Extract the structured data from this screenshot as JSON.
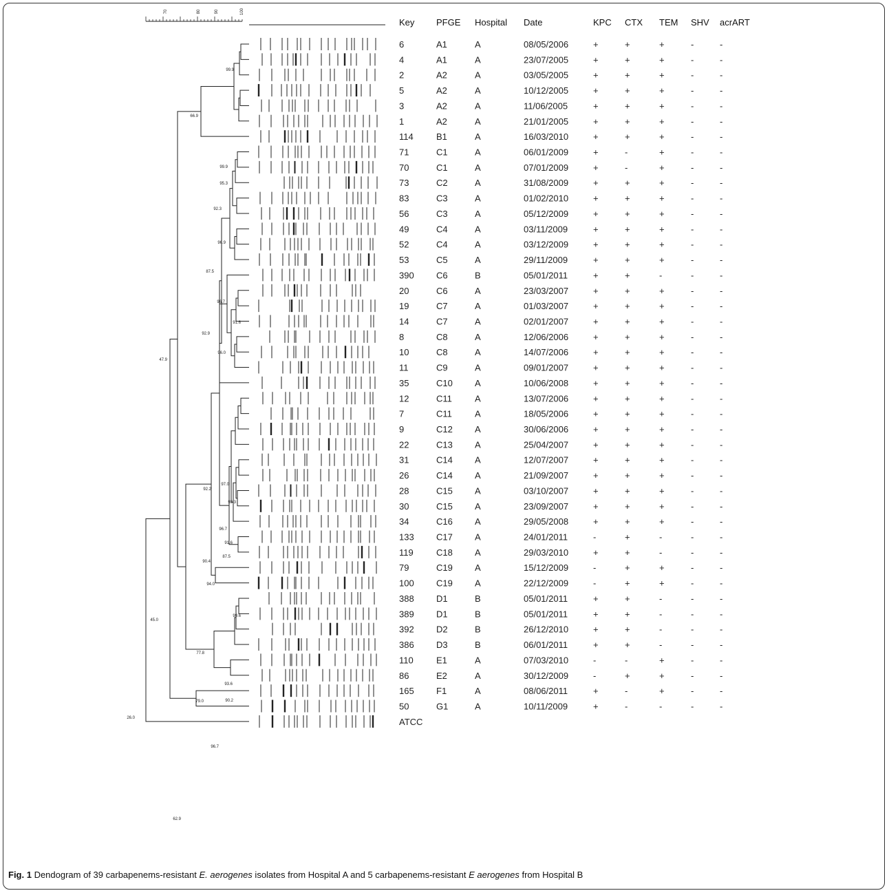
{
  "headers": [
    "Key",
    "PFGE",
    "Hospital",
    "Date",
    "KPC",
    "CTX",
    "TEM",
    "SHV",
    "acrART"
  ],
  "scale_ticks": [
    "70",
    "80",
    "90",
    "100"
  ],
  "rows": [
    {
      "key": "6",
      "pfge": "A1",
      "hospital": "A",
      "date": "08/05/2006",
      "kpc": "+",
      "ctx": "+",
      "tem": "+",
      "shv": "-",
      "acr": "-"
    },
    {
      "key": "4",
      "pfge": "A1",
      "hospital": "A",
      "date": "23/07/2005",
      "kpc": "+",
      "ctx": "+",
      "tem": "+",
      "shv": "-",
      "acr": "-"
    },
    {
      "key": "2",
      "pfge": "A2",
      "hospital": "A",
      "date": "03/05/2005",
      "kpc": "+",
      "ctx": "+",
      "tem": "+",
      "shv": "-",
      "acr": "-"
    },
    {
      "key": "5",
      "pfge": "A2",
      "hospital": "A",
      "date": "10/12/2005",
      "kpc": "+",
      "ctx": "+",
      "tem": "+",
      "shv": "-",
      "acr": "-"
    },
    {
      "key": "3",
      "pfge": "A2",
      "hospital": "A",
      "date": "11/06/2005",
      "kpc": "+",
      "ctx": "+",
      "tem": "+",
      "shv": "-",
      "acr": "-"
    },
    {
      "key": "1",
      "pfge": "A2",
      "hospital": "A",
      "date": "21/01/2005",
      "kpc": "+",
      "ctx": "+",
      "tem": "+",
      "shv": "-",
      "acr": "-"
    },
    {
      "key": "114",
      "pfge": "B1",
      "hospital": "A",
      "date": "16/03/2010",
      "kpc": "+",
      "ctx": "+",
      "tem": "+",
      "shv": "-",
      "acr": "-"
    },
    {
      "key": "71",
      "pfge": "C1",
      "hospital": "A",
      "date": "06/01/2009",
      "kpc": "+",
      "ctx": "-",
      "tem": "+",
      "shv": "-",
      "acr": "-"
    },
    {
      "key": "70",
      "pfge": "C1",
      "hospital": "A",
      "date": "07/01/2009",
      "kpc": "+",
      "ctx": "-",
      "tem": "+",
      "shv": "-",
      "acr": "-"
    },
    {
      "key": "73",
      "pfge": "C2",
      "hospital": "A",
      "date": "31/08/2009",
      "kpc": "+",
      "ctx": "+",
      "tem": "+",
      "shv": "-",
      "acr": "-"
    },
    {
      "key": "83",
      "pfge": "C3",
      "hospital": "A",
      "date": "01/02/2010",
      "kpc": "+",
      "ctx": "+",
      "tem": "+",
      "shv": "-",
      "acr": "-"
    },
    {
      "key": "56",
      "pfge": "C3",
      "hospital": "A",
      "date": "05/12/2009",
      "kpc": "+",
      "ctx": "+",
      "tem": "+",
      "shv": "-",
      "acr": "-"
    },
    {
      "key": "49",
      "pfge": "C4",
      "hospital": "A",
      "date": "03/11/2009",
      "kpc": "+",
      "ctx": "+",
      "tem": "+",
      "shv": "-",
      "acr": "-"
    },
    {
      "key": "52",
      "pfge": "C4",
      "hospital": "A",
      "date": "03/12/2009",
      "kpc": "+",
      "ctx": "+",
      "tem": "+",
      "shv": "-",
      "acr": "-"
    },
    {
      "key": "53",
      "pfge": "C5",
      "hospital": "A",
      "date": "29/11/2009",
      "kpc": "+",
      "ctx": "+",
      "tem": "+",
      "shv": "-",
      "acr": "-"
    },
    {
      "key": "390",
      "pfge": "C6",
      "hospital": "B",
      "date": "05/01/2011",
      "kpc": "+",
      "ctx": "+",
      "tem": "-",
      "shv": "-",
      "acr": "-"
    },
    {
      "key": "20",
      "pfge": "C6",
      "hospital": "A",
      "date": "23/03/2007",
      "kpc": "+",
      "ctx": "+",
      "tem": "+",
      "shv": "-",
      "acr": "-"
    },
    {
      "key": "19",
      "pfge": "C7",
      "hospital": "A",
      "date": "01/03/2007",
      "kpc": "+",
      "ctx": "+",
      "tem": "+",
      "shv": "-",
      "acr": "-"
    },
    {
      "key": "14",
      "pfge": "C7",
      "hospital": "A",
      "date": "02/01/2007",
      "kpc": "+",
      "ctx": "+",
      "tem": "+",
      "shv": "-",
      "acr": "-"
    },
    {
      "key": "8",
      "pfge": "C8",
      "hospital": "A",
      "date": "12/06/2006",
      "kpc": "+",
      "ctx": "+",
      "tem": "+",
      "shv": "-",
      "acr": "-"
    },
    {
      "key": "10",
      "pfge": "C8",
      "hospital": "A",
      "date": "14/07/2006",
      "kpc": "+",
      "ctx": "+",
      "tem": "+",
      "shv": "-",
      "acr": "-"
    },
    {
      "key": "11",
      "pfge": "C9",
      "hospital": "A",
      "date": "09/01/2007",
      "kpc": "+",
      "ctx": "+",
      "tem": "+",
      "shv": "-",
      "acr": "-"
    },
    {
      "key": "35",
      "pfge": "C10",
      "hospital": "A",
      "date": "10/06/2008",
      "kpc": "+",
      "ctx": "+",
      "tem": "+",
      "shv": "-",
      "acr": "-"
    },
    {
      "key": "12",
      "pfge": "C11",
      "hospital": "A",
      "date": "13/07/2006",
      "kpc": "+",
      "ctx": "+",
      "tem": "+",
      "shv": "-",
      "acr": "-"
    },
    {
      "key": "7",
      "pfge": "C11",
      "hospital": "A",
      "date": "18/05/2006",
      "kpc": "+",
      "ctx": "+",
      "tem": "+",
      "shv": "-",
      "acr": "-"
    },
    {
      "key": "9",
      "pfge": "C12",
      "hospital": "A",
      "date": "30/06/2006",
      "kpc": "+",
      "ctx": "+",
      "tem": "+",
      "shv": "-",
      "acr": "-"
    },
    {
      "key": "22",
      "pfge": "C13",
      "hospital": "A",
      "date": "25/04/2007",
      "kpc": "+",
      "ctx": "+",
      "tem": "+",
      "shv": "-",
      "acr": "-"
    },
    {
      "key": "31",
      "pfge": "C14",
      "hospital": "A",
      "date": "12/07/2007",
      "kpc": "+",
      "ctx": "+",
      "tem": "+",
      "shv": "-",
      "acr": "-"
    },
    {
      "key": "26",
      "pfge": "C14",
      "hospital": "A",
      "date": "21/09/2007",
      "kpc": "+",
      "ctx": "+",
      "tem": "+",
      "shv": "-",
      "acr": "-"
    },
    {
      "key": "28",
      "pfge": "C15",
      "hospital": "A",
      "date": "03/10/2007",
      "kpc": "+",
      "ctx": "+",
      "tem": "+",
      "shv": "-",
      "acr": "-"
    },
    {
      "key": "30",
      "pfge": "C15",
      "hospital": "A",
      "date": "23/09/2007",
      "kpc": "+",
      "ctx": "+",
      "tem": "+",
      "shv": "-",
      "acr": "-"
    },
    {
      "key": "34",
      "pfge": "C16",
      "hospital": "A",
      "date": "29/05/2008",
      "kpc": "+",
      "ctx": "+",
      "tem": "+",
      "shv": "-",
      "acr": "-"
    },
    {
      "key": "133",
      "pfge": "C17",
      "hospital": "A",
      "date": "24/01/2011",
      "kpc": "-",
      "ctx": "+",
      "tem": "-",
      "shv": "-",
      "acr": "-"
    },
    {
      "key": "119",
      "pfge": "C18",
      "hospital": "A",
      "date": "29/03/2010",
      "kpc": "+",
      "ctx": "+",
      "tem": "-",
      "shv": "-",
      "acr": "-"
    },
    {
      "key": "79",
      "pfge": "C19",
      "hospital": "A",
      "date": "15/12/2009",
      "kpc": "-",
      "ctx": "+",
      "tem": "+",
      "shv": "-",
      "acr": "-"
    },
    {
      "key": "100",
      "pfge": "C19",
      "hospital": "A",
      "date": "22/12/2009",
      "kpc": "-",
      "ctx": "+",
      "tem": "+",
      "shv": "-",
      "acr": "-"
    },
    {
      "key": "388",
      "pfge": "D1",
      "hospital": "B",
      "date": "05/01/2011",
      "kpc": "+",
      "ctx": "+",
      "tem": "-",
      "shv": "-",
      "acr": "-"
    },
    {
      "key": "389",
      "pfge": "D1",
      "hospital": "B",
      "date": "05/01/2011",
      "kpc": "+",
      "ctx": "+",
      "tem": "-",
      "shv": "-",
      "acr": "-"
    },
    {
      "key": "392",
      "pfge": "D2",
      "hospital": "B",
      "date": "26/12/2010",
      "kpc": "+",
      "ctx": "+",
      "tem": "-",
      "shv": "-",
      "acr": "-"
    },
    {
      "key": "386",
      "pfge": "D3",
      "hospital": "B",
      "date": "06/01/2011",
      "kpc": "+",
      "ctx": "+",
      "tem": "-",
      "shv": "-",
      "acr": "-"
    },
    {
      "key": "110",
      "pfge": "E1",
      "hospital": "A",
      "date": "07/03/2010",
      "kpc": "-",
      "ctx": "-",
      "tem": "+",
      "shv": "-",
      "acr": "-"
    },
    {
      "key": "86",
      "pfge": "E2",
      "hospital": "A",
      "date": "30/12/2009",
      "kpc": "-",
      "ctx": "+",
      "tem": "+",
      "shv": "-",
      "acr": "-"
    },
    {
      "key": "165",
      "pfge": "F1",
      "hospital": "A",
      "date": "08/06/2011",
      "kpc": "+",
      "ctx": "-",
      "tem": "+",
      "shv": "-",
      "acr": "-"
    },
    {
      "key": "50",
      "pfge": "G1",
      "hospital": "A",
      "date": "10/11/2009",
      "kpc": "+",
      "ctx": "-",
      "tem": "-",
      "shv": "-",
      "acr": "-"
    },
    {
      "key": "ATCC",
      "pfge": "",
      "hospital": "",
      "date": "",
      "kpc": "",
      "ctx": "",
      "tem": "",
      "shv": "",
      "acr": ""
    }
  ],
  "node_labels": [
    "99.9",
    "66.9",
    "99.9",
    "95.3",
    "92.3",
    "96.9",
    "87.5",
    "96.7",
    "91.6",
    "92.9",
    "96.0",
    "47.9",
    "97.0",
    "93.3",
    "92.2",
    "96.7",
    "91.6",
    "87.5",
    "90.4",
    "94.0",
    "99.6",
    "45.0",
    "77.8",
    "93.6",
    "90.2",
    "79.0",
    "96.7",
    "26.0",
    "62.9"
  ],
  "caption": {
    "label": "Fig. 1",
    "text_1": " Dendogram of 39 carbapenems-resistant ",
    "italic_1": "E. aerogenes",
    "text_2": " isolates from Hospital A and 5 carbapenems-resistant ",
    "italic_2": "E aerogenes",
    "text_3": " from Hospital B"
  }
}
